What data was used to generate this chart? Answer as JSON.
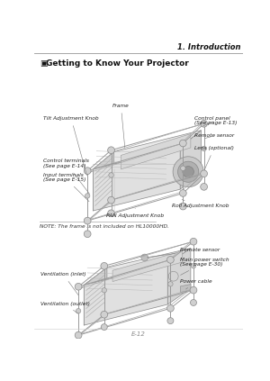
{
  "page_header_right": "1. Introduction",
  "section_title": "3 Getting to Know Your Projector",
  "page_footer": "E-12",
  "bg_color": "#ffffff",
  "header_line_color": "#999999",
  "label_fontsize": 4.2,
  "section_fontsize": 6.5,
  "header_fontsize": 6.0,
  "note_fontsize": 4.2,
  "footer_fontsize": 5.0,
  "body_color": "#f2f2f2",
  "body_edge": "#888888",
  "frame_color": "#aaaaaa",
  "dark_face": "#d8d8d8",
  "mid_face": "#e5e5e5"
}
